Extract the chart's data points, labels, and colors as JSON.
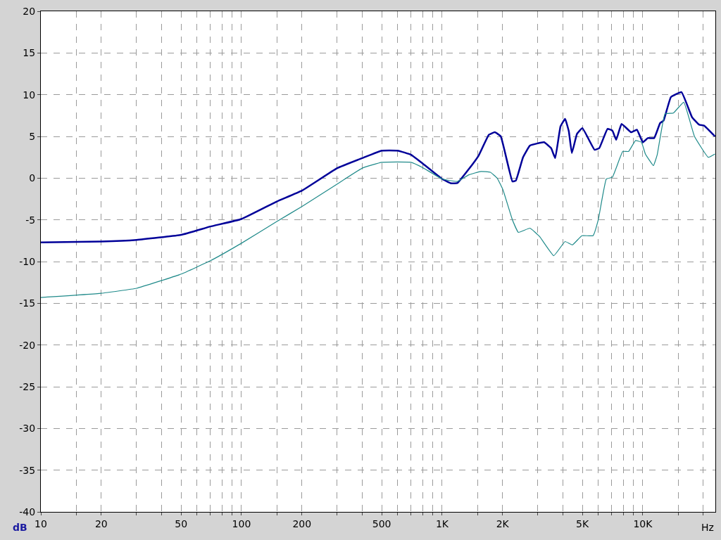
{
  "chart_data": {
    "type": "line",
    "xlabel": "Hz",
    "ylabel": "dB",
    "log": "x",
    "grid": true,
    "marker": "none",
    "line_style": "solid",
    "xlim": [
      10,
      23000
    ],
    "ylim": [
      -40,
      20
    ],
    "xticks": [
      10,
      {
        "value": 15,
        "label": null
      },
      20,
      {
        "value": 30,
        "label": null
      },
      {
        "value": 40,
        "label": null
      },
      50,
      {
        "value": 60,
        "label": null
      },
      {
        "value": 70,
        "label": null
      },
      {
        "value": 80,
        "label": null
      },
      {
        "value": 90,
        "label": null
      },
      100,
      {
        "value": 150,
        "label": null
      },
      200,
      {
        "value": 300,
        "label": null
      },
      {
        "value": 400,
        "label": null
      },
      500,
      {
        "value": 600,
        "label": null
      },
      {
        "value": 700,
        "label": null
      },
      {
        "value": 800,
        "label": null
      },
      {
        "value": 900,
        "label": null
      },
      {
        "value": 1000,
        "label": "1K"
      },
      {
        "value": 1500,
        "label": null
      },
      {
        "value": 2000,
        "label": "2K"
      },
      {
        "value": 3000,
        "label": null
      },
      {
        "value": 4000,
        "label": null
      },
      {
        "value": 5000,
        "label": "5K"
      },
      {
        "value": 6000,
        "label": null
      },
      {
        "value": 7000,
        "label": null
      },
      {
        "value": 8000,
        "label": null
      },
      {
        "value": 9000,
        "label": null
      },
      {
        "value": 10000,
        "label": "10K"
      },
      {
        "value": 15000,
        "label": null
      },
      {
        "value": 20000,
        "label": null
      }
    ],
    "yticks": [
      -40,
      -35,
      -30,
      -25,
      -20,
      -15,
      -10,
      -5,
      0,
      5,
      10,
      15,
      20
    ],
    "series": [
      {
        "color": "#000099",
        "x": [
          10,
          20,
          30,
          50,
          70,
          100,
          150,
          200,
          300,
          400,
          500,
          600,
          700,
          795,
          1000,
          1100,
          1190,
          1360,
          1520,
          1710,
          1830,
          1960,
          2240,
          2330,
          2530,
          2740,
          3220,
          3490,
          3660,
          3890,
          4100,
          4280,
          4430,
          4700,
          5000,
          5750,
          6070,
          6670,
          7050,
          7370,
          7840,
          8740,
          9350,
          10000,
          10600,
          11400,
          12200,
          12700,
          13800,
          15600,
          17600,
          19100,
          20200,
          22900
        ],
        "values": [
          -7.7,
          -7.6,
          -7.4,
          -6.8,
          -5.8,
          -4.9,
          -2.8,
          -1.5,
          1.2,
          2.4,
          3.3,
          3.3,
          2.8,
          1.8,
          -0.1,
          -0.6,
          -0.6,
          1.1,
          2.7,
          5.2,
          5.5,
          5.0,
          -0.4,
          -0.3,
          2.5,
          3.9,
          4.3,
          3.6,
          2.4,
          6.2,
          7.1,
          5.6,
          3.0,
          5.3,
          6.0,
          3.4,
          3.6,
          5.9,
          5.7,
          4.6,
          6.5,
          5.5,
          5.8,
          4.3,
          4.8,
          4.8,
          6.6,
          6.9,
          9.7,
          10.3,
          7.3,
          6.4,
          6.3,
          5.0
        ]
      },
      {
        "color": "#1f8a8a",
        "x": [
          10,
          20,
          30,
          50,
          70,
          100,
          150,
          200,
          300,
          400,
          500,
          700,
          795,
          1000,
          1190,
          1360,
          1560,
          1740,
          1880,
          2010,
          2240,
          2400,
          2740,
          3060,
          3600,
          4100,
          4460,
          4970,
          5650,
          6000,
          6580,
          7050,
          7950,
          8500,
          9200,
          9850,
          10300,
          11300,
          11800,
          12900,
          14200,
          16000,
          18100,
          21200,
          22900
        ],
        "values": [
          -14.3,
          -13.8,
          -13.2,
          -11.5,
          -9.9,
          -7.8,
          -5.2,
          -3.4,
          -0.7,
          1.2,
          1.9,
          1.9,
          1.3,
          -0.1,
          -0.4,
          0.4,
          0.8,
          0.7,
          0.0,
          -1.4,
          -5.0,
          -6.5,
          -6.0,
          -7.0,
          -9.3,
          -7.6,
          -8.0,
          -6.9,
          -6.9,
          -5.0,
          -0.1,
          0.1,
          3.2,
          3.2,
          4.5,
          4.3,
          2.9,
          1.5,
          2.8,
          7.7,
          7.8,
          9.1,
          5.0,
          2.5,
          2.9
        ]
      }
    ]
  }
}
